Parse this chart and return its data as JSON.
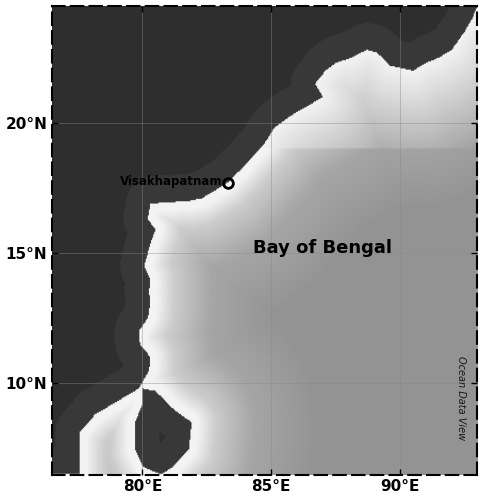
{
  "lon_min": 76.5,
  "lon_max": 93.0,
  "lat_min": 6.5,
  "lat_max": 24.5,
  "xticks": [
    80,
    85,
    90
  ],
  "yticks": [
    10,
    15,
    20
  ],
  "xlabel_labels": [
    "80°E",
    "85°E",
    "90°E"
  ],
  "ylabel_labels": [
    "10°N",
    "15°N",
    "20°N"
  ],
  "site_lon": 83.3,
  "site_lat": 17.7,
  "site_label": "Visakhapatnam",
  "bay_label": "Bay of Bengal",
  "bay_label_lon": 87.0,
  "bay_label_lat": 15.2,
  "watermark": "Ocean Data View",
  "tick_fontsize": 11
}
